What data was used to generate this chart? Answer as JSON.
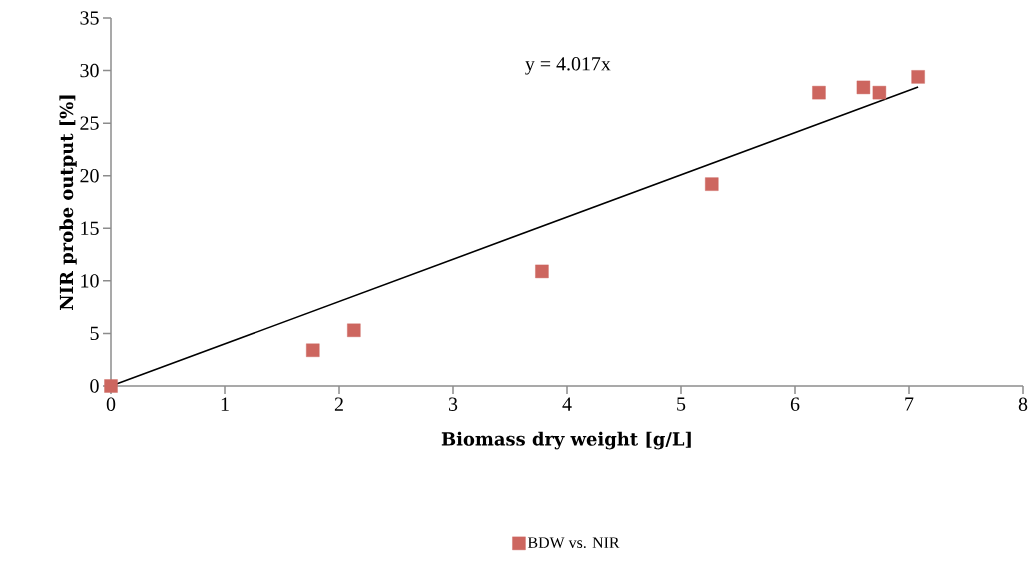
{
  "chart_data": {
    "type": "scatter",
    "xlabel": "Biomass dry weight [g/L]",
    "ylabel": "NIR probe output [%]",
    "xlim": [
      0,
      8
    ],
    "ylim": [
      0,
      35
    ],
    "xticks": [
      0,
      1,
      2,
      3,
      4,
      5,
      6,
      7,
      8
    ],
    "yticks": [
      0,
      5,
      10,
      15,
      20,
      25,
      30,
      35
    ],
    "marker": "square",
    "legend": "bottom",
    "annotations": [
      "y = 4.017x"
    ],
    "series": [
      {
        "name": "BDW vs. NIR",
        "color": "#cd665f",
        "x": [
          0,
          1.77,
          2.13,
          3.78,
          5.27,
          6.21,
          6.6,
          6.74,
          7.08
        ],
        "values": [
          0,
          3.4,
          5.3,
          10.9,
          19.2,
          27.9,
          28.4,
          27.9,
          29.4
        ]
      },
      {
        "type": "line",
        "marker": "none",
        "color": "#000000",
        "x": [
          0,
          7.08
        ],
        "values": [
          0,
          28.44
        ]
      }
    ]
  }
}
